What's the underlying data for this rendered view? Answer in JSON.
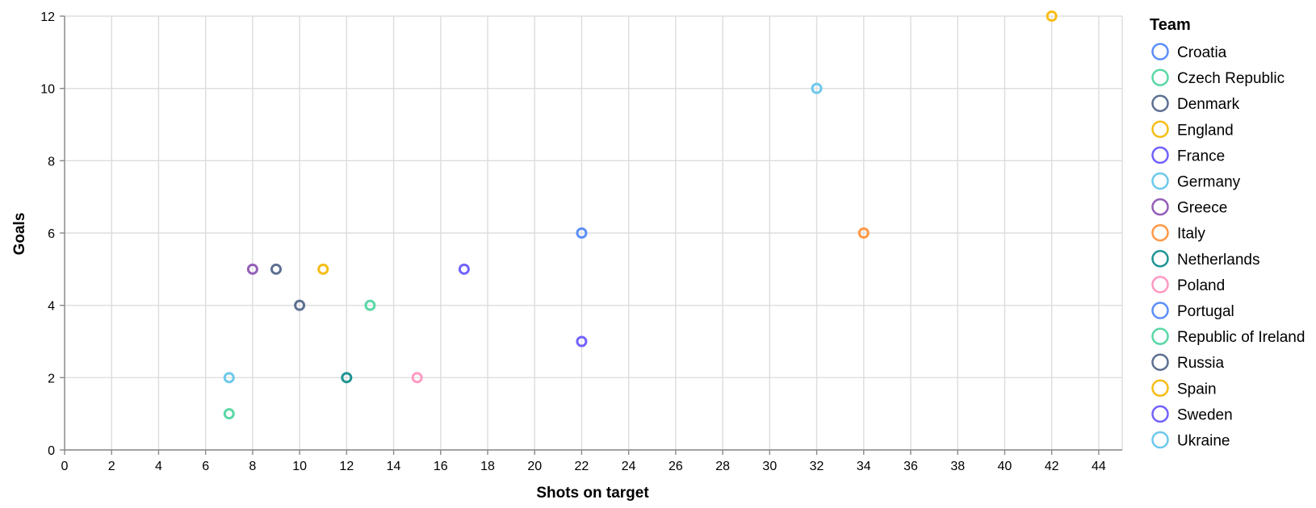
{
  "chart_data": {
    "type": "scatter",
    "xlabel": "Shots on target",
    "ylabel": "Goals",
    "xlim": [
      0,
      45
    ],
    "ylim": [
      0,
      12
    ],
    "x_ticks": [
      0,
      2,
      4,
      6,
      8,
      10,
      12,
      14,
      16,
      18,
      20,
      22,
      24,
      26,
      28,
      30,
      32,
      34,
      36,
      38,
      40,
      42,
      44
    ],
    "y_ticks": [
      0,
      2,
      4,
      6,
      8,
      10,
      12
    ],
    "grid": true,
    "legend": {
      "title": "Team",
      "placement": "right",
      "entries": [
        {
          "name": "Croatia",
          "color": "#5b8ff9"
        },
        {
          "name": "Czech Republic",
          "color": "#5ad8a6"
        },
        {
          "name": "Denmark",
          "color": "#5d7092"
        },
        {
          "name": "England",
          "color": "#f6bd16"
        },
        {
          "name": "France",
          "color": "#7262fd"
        },
        {
          "name": "Germany",
          "color": "#6dc8ec"
        },
        {
          "name": "Greece",
          "color": "#945fb9"
        },
        {
          "name": "Italy",
          "color": "#ff9845"
        },
        {
          "name": "Netherlands",
          "color": "#1e9493"
        },
        {
          "name": "Poland",
          "color": "#ff99c3"
        },
        {
          "name": "Portugal",
          "color": "#5b8ff9"
        },
        {
          "name": "Republic of Ireland",
          "color": "#5ad8a6"
        },
        {
          "name": "Russia",
          "color": "#5d7092"
        },
        {
          "name": "Spain",
          "color": "#f6bd16"
        },
        {
          "name": "Sweden",
          "color": "#7262fd"
        },
        {
          "name": "Ukraine",
          "color": "#6dc8ec"
        }
      ]
    },
    "points": [
      {
        "team": "Spain",
        "x": 42,
        "y": 12
      },
      {
        "team": "Germany",
        "x": 32,
        "y": 10
      },
      {
        "team": "Portugal",
        "x": 22,
        "y": 6
      },
      {
        "team": "Italy",
        "x": 34,
        "y": 6
      },
      {
        "team": "Greece",
        "x": 8,
        "y": 5
      },
      {
        "team": "Russia",
        "x": 9,
        "y": 5
      },
      {
        "team": "England",
        "x": 11,
        "y": 5
      },
      {
        "team": "France",
        "x": 17,
        "y": 5
      },
      {
        "team": "Denmark",
        "x": 10,
        "y": 4
      },
      {
        "team": "Czech Republic",
        "x": 13,
        "y": 4
      },
      {
        "team": "Sweden",
        "x": 22,
        "y": 3
      },
      {
        "team": "Ukraine",
        "x": 7,
        "y": 2
      },
      {
        "team": "Netherlands",
        "x": 12,
        "y": 2
      },
      {
        "team": "Poland",
        "x": 15,
        "y": 2
      },
      {
        "team": "Republic of Ireland",
        "x": 7,
        "y": 1
      }
    ]
  }
}
